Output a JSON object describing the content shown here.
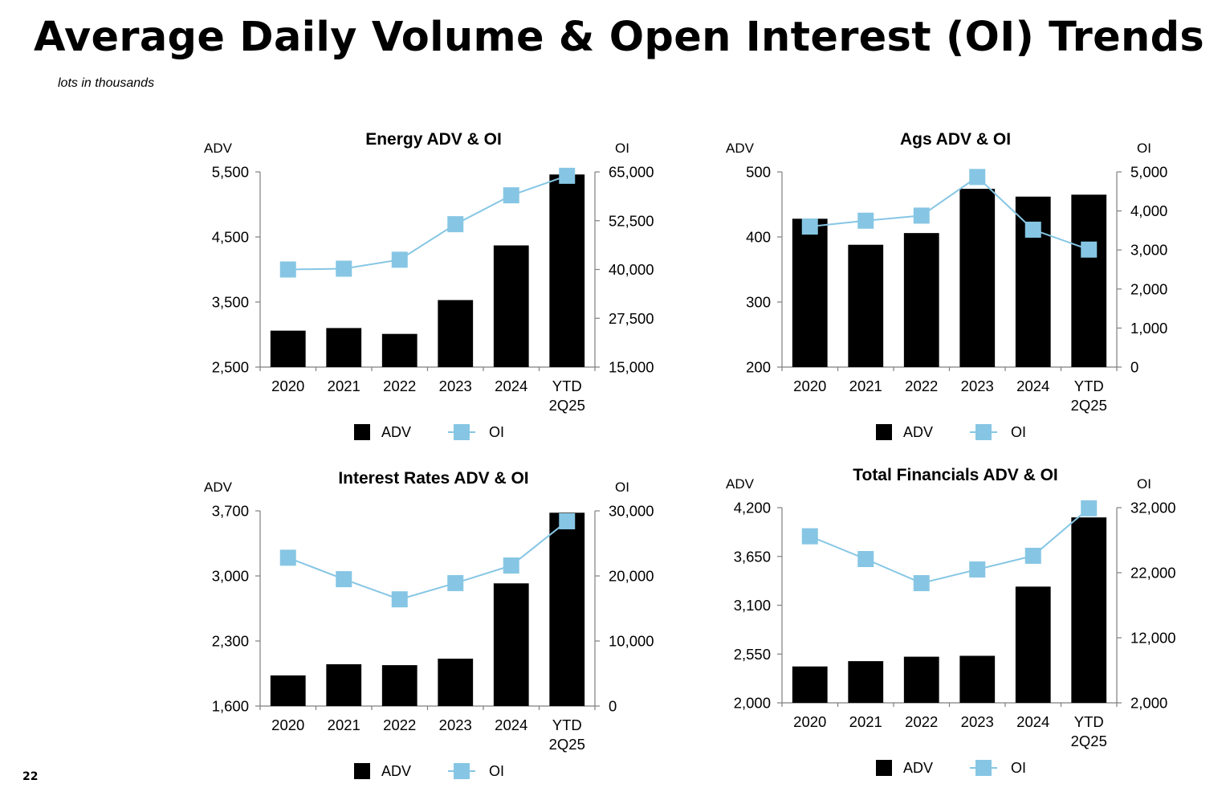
{
  "page": {
    "title": "Average Daily Volume & Open Interest (OI) Trends",
    "subtitle": "lots in thousands",
    "page_number": "22"
  },
  "colors": {
    "bar": "#000000",
    "line": "#86C6E4",
    "axis": "#7f7f7f"
  },
  "chart_data": [
    {
      "type": "bar+line",
      "title": "Energy ADV & OI",
      "categories": [
        "2020",
        "2021",
        "2022",
        "2023",
        "2024",
        "YTD\n2Q25"
      ],
      "y_left": {
        "label": "ADV",
        "ylim": [
          2500,
          5500
        ],
        "ticks": [
          "2,500",
          "3,500",
          "4,500",
          "5,500"
        ]
      },
      "y_right": {
        "label": "OI",
        "ylim": [
          15000,
          65000
        ],
        "ticks": [
          "15,000",
          "27,500",
          "40,000",
          "52,500",
          "65,000"
        ]
      },
      "series": [
        {
          "name": "ADV",
          "type": "bar",
          "axis": "left",
          "values": [
            3060,
            3100,
            3010,
            3530,
            4370,
            5460
          ]
        },
        {
          "name": "OI",
          "type": "line",
          "axis": "right",
          "values": [
            40000,
            40200,
            42500,
            51600,
            59000,
            64000
          ]
        }
      ],
      "legend": [
        "ADV",
        "OI"
      ]
    },
    {
      "type": "bar+line",
      "title": "Ags ADV & OI",
      "categories": [
        "2020",
        "2021",
        "2022",
        "2023",
        "2024",
        "YTD\n2Q25"
      ],
      "y_left": {
        "label": "ADV",
        "ylim": [
          200,
          500
        ],
        "ticks": [
          "200",
          "300",
          "400",
          "500"
        ]
      },
      "y_right": {
        "label": "OI",
        "ylim": [
          0,
          5000
        ],
        "ticks": [
          "0",
          "1,000",
          "2,000",
          "3,000",
          "4,000",
          "5,000"
        ]
      },
      "series": [
        {
          "name": "ADV",
          "type": "bar",
          "axis": "left",
          "values": [
            428,
            388,
            406,
            474,
            462,
            465
          ]
        },
        {
          "name": "OI",
          "type": "line",
          "axis": "right",
          "values": [
            3600,
            3750,
            3880,
            4870,
            3520,
            3010
          ]
        }
      ],
      "legend": [
        "ADV",
        "OI"
      ]
    },
    {
      "type": "bar+line",
      "title": "Interest Rates ADV & OI",
      "categories": [
        "2020",
        "2021",
        "2022",
        "2023",
        "2024",
        "YTD\n2Q25"
      ],
      "y_left": {
        "label": "ADV",
        "ylim": [
          1600,
          3700
        ],
        "ticks": [
          "1,600",
          "2,300",
          "3,000",
          "3,700"
        ]
      },
      "y_right": {
        "label": "OI",
        "ylim": [
          0,
          30000
        ],
        "ticks": [
          "0",
          "10,000",
          "20,000",
          "30,000"
        ]
      },
      "series": [
        {
          "name": "ADV",
          "type": "bar",
          "axis": "left",
          "values": [
            1930,
            2050,
            2040,
            2110,
            2920,
            3680
          ]
        },
        {
          "name": "OI",
          "type": "line",
          "axis": "right",
          "values": [
            22800,
            19500,
            16400,
            18900,
            21600,
            28400
          ]
        }
      ],
      "legend": [
        "ADV",
        "OI"
      ]
    },
    {
      "type": "bar+line",
      "title": "Total Financials ADV & OI",
      "categories": [
        "2020",
        "2021",
        "2022",
        "2023",
        "2024",
        "YTD\n2Q25"
      ],
      "y_left": {
        "label": "ADV",
        "ylim": [
          2000,
          4200
        ],
        "ticks": [
          "2,000",
          "2,550",
          "3,100",
          "3,650",
          "4,200"
        ]
      },
      "y_right": {
        "label": "OI",
        "ylim": [
          2000,
          32000
        ],
        "ticks": [
          "2,000",
          "12,000",
          "22,000",
          "32,000"
        ]
      },
      "series": [
        {
          "name": "ADV",
          "type": "bar",
          "axis": "left",
          "values": [
            2410,
            2470,
            2520,
            2530,
            3310,
            4090
          ]
        },
        {
          "name": "OI",
          "type": "line",
          "axis": "right",
          "values": [
            27600,
            24100,
            20400,
            22500,
            24600,
            31900
          ]
        }
      ],
      "legend": [
        "ADV",
        "OI"
      ]
    }
  ]
}
